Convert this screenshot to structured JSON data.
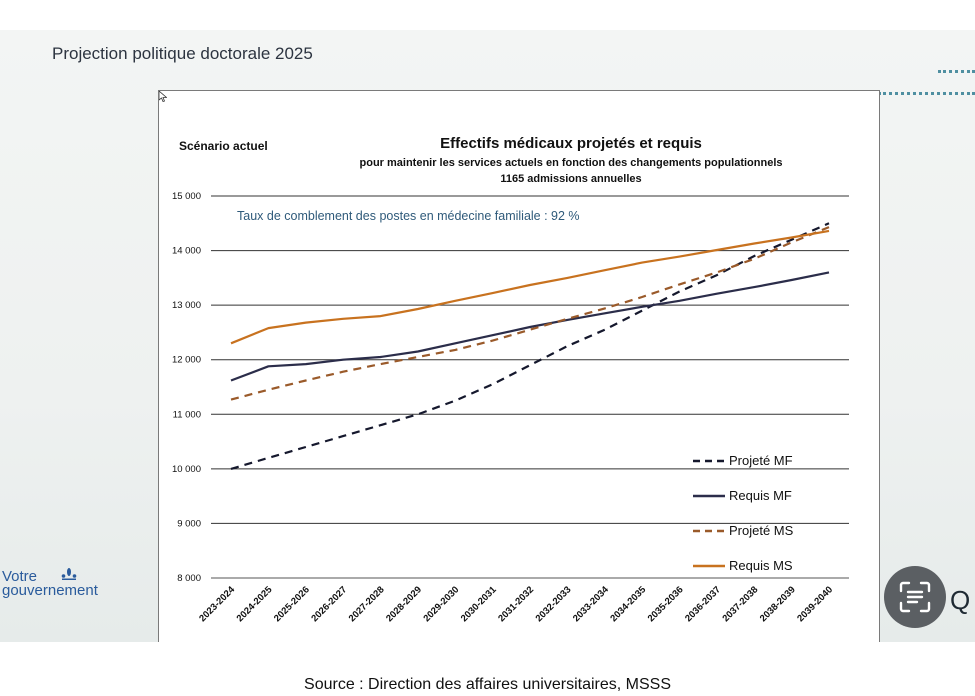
{
  "slide": {
    "title": "Projection politique doctorale 2025",
    "logo_line1": "Votre",
    "logo_line2": "gouvernement",
    "logo_icon": "fleur-de-lis-icon",
    "corner_letter": "Q"
  },
  "lens_button": {
    "icon": "lens-scan-icon"
  },
  "source": "Source : Direction des affaires universitaires, MSSS",
  "chart_data": {
    "type": "line",
    "scenario": "Scénario actuel",
    "title": "Effectifs médicaux projetés et requis",
    "subtitle": "pour maintenir les services actuels en fonction des changements populationnels",
    "subtitle2": "1165 admissions annuelles",
    "annotation": "Taux de comblement des postes en médecine familiale : 92 %",
    "xlabel": "",
    "ylabel": "",
    "ylim": [
      8000,
      15000
    ],
    "yticks": [
      8000,
      9000,
      10000,
      11000,
      12000,
      13000,
      14000,
      15000
    ],
    "ytick_labels": [
      "8 000",
      "9 000",
      "10 000",
      "11 000",
      "12 000",
      "13 000",
      "14 000",
      "15 000"
    ],
    "grid": "horizontal",
    "legend_position": "bottom-right",
    "categories": [
      "2023-2024",
      "2024-2025",
      "2025-2026",
      "2026-2027",
      "2027-2028",
      "2028-2029",
      "2029-2030",
      "2030-2031",
      "2031-2032",
      "2032-2033",
      "2033-2034",
      "2034-2035",
      "2035-2036",
      "2036-2037",
      "2037-2038",
      "2038-2039",
      "2039-2040"
    ],
    "series": [
      {
        "name": "Projeté MF",
        "style": "dashed",
        "color": "#15182d",
        "values": [
          10000,
          10200,
          10400,
          10600,
          10800,
          11000,
          11250,
          11550,
          11900,
          12250,
          12550,
          12900,
          13250,
          13550,
          13900,
          14200,
          14500
        ]
      },
      {
        "name": "Requis MF",
        "style": "solid",
        "color": "#2b2d4a",
        "values": [
          11620,
          11880,
          11920,
          12000,
          12050,
          12150,
          12300,
          12450,
          12600,
          12730,
          12850,
          12970,
          13080,
          13210,
          13330,
          13460,
          13600
        ]
      },
      {
        "name": "Projeté MS",
        "style": "dashed",
        "color": "#9a5a2a",
        "values": [
          11270,
          11450,
          11620,
          11780,
          11920,
          12050,
          12180,
          12350,
          12550,
          12750,
          12940,
          13150,
          13380,
          13600,
          13850,
          14150,
          14430
        ]
      },
      {
        "name": "Requis MS",
        "style": "solid",
        "color": "#c8721f",
        "values": [
          12300,
          12580,
          12680,
          12750,
          12800,
          12930,
          13080,
          13220,
          13370,
          13500,
          13640,
          13780,
          13890,
          14010,
          14130,
          14240,
          14360
        ]
      }
    ]
  }
}
